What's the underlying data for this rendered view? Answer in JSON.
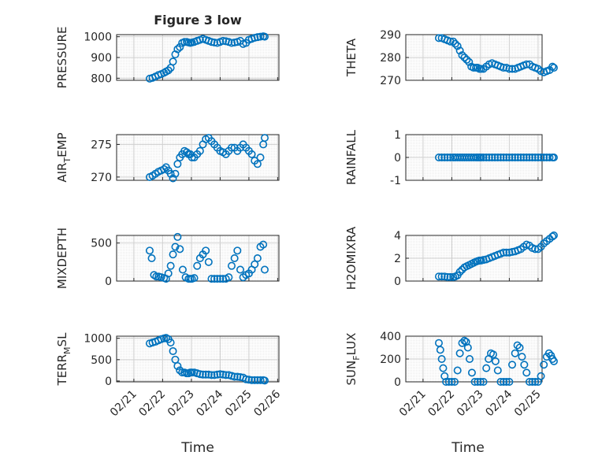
{
  "figure": {
    "title": "Figure 3 low",
    "xlabel": "Time",
    "x_tick_labels": [
      "02/21",
      "02/22",
      "02/23",
      "02/24",
      "02/25",
      "02/26"
    ]
  },
  "chart_data": [
    {
      "type": "scatter",
      "id": "pressure",
      "ylabel": "PRESSURE",
      "ylim": [
        790,
        1010
      ],
      "yticks": [
        800,
        900,
        1000
      ],
      "grid": true,
      "x_range_days": [
        0,
        5
      ],
      "x_tick_labels": [
        "02/21",
        "02/22",
        "02/23",
        "02/24",
        "02/25",
        "02/26"
      ],
      "series": [
        {
          "x": [
            0.55,
            0.65,
            0.75,
            0.85,
            0.95,
            1.05,
            1.12,
            1.2,
            1.28,
            1.36,
            1.44,
            1.52,
            1.6,
            1.68,
            1.76,
            1.84,
            1.9,
            1.96,
            2.02,
            2.1,
            2.2,
            2.3,
            2.4,
            2.5,
            2.6,
            2.7,
            2.8,
            2.9,
            3.0,
            3.1,
            3.2,
            3.3,
            3.4,
            3.5,
            3.6,
            3.7,
            3.8,
            3.9,
            4.0,
            4.1,
            4.2,
            4.3,
            4.4,
            4.5,
            4.55
          ],
          "values": [
            798,
            802,
            808,
            815,
            820,
            826,
            832,
            838,
            850,
            880,
            915,
            940,
            950,
            970,
            975,
            975,
            972,
            970,
            972,
            975,
            980,
            985,
            990,
            985,
            980,
            975,
            972,
            970,
            975,
            980,
            978,
            975,
            970,
            972,
            975,
            980,
            965,
            970,
            985,
            990,
            995,
            998,
            1000,
            1002,
            1000
          ]
        }
      ]
    },
    {
      "type": "scatter",
      "id": "theta",
      "ylabel": "THETA",
      "ylim": [
        270,
        290
      ],
      "yticks": [
        270,
        280,
        290
      ],
      "grid": true,
      "x_range_days": [
        0,
        5
      ],
      "x_tick_labels": [
        "02/21",
        "02/22",
        "02/23",
        "02/24",
        "02/25",
        "02/26"
      ],
      "series": [
        {
          "x": [
            0.55,
            0.65,
            0.75,
            0.85,
            0.95,
            1.05,
            1.12,
            1.2,
            1.28,
            1.36,
            1.44,
            1.52,
            1.6,
            1.68,
            1.76,
            1.84,
            1.9,
            1.96,
            2.02,
            2.1,
            2.2,
            2.3,
            2.4,
            2.5,
            2.6,
            2.7,
            2.8,
            2.9,
            3.0,
            3.1,
            3.2,
            3.3,
            3.4,
            3.5,
            3.6,
            3.7,
            3.8,
            3.9,
            4.0,
            4.1,
            4.2,
            4.3,
            4.4,
            4.5,
            4.55
          ],
          "values": [
            288.5,
            288.5,
            288,
            287.5,
            287,
            287,
            286,
            285,
            283,
            281,
            280,
            279,
            278,
            276,
            275.5,
            275.5,
            275.5,
            275,
            275,
            275,
            276,
            277,
            277.5,
            277,
            276.5,
            276,
            275.5,
            275.5,
            275,
            275,
            275,
            275.5,
            276,
            276.5,
            277,
            277,
            276,
            275.5,
            275,
            274,
            273.5,
            274,
            274.5,
            276,
            275.5
          ]
        }
      ]
    },
    {
      "type": "scatter",
      "id": "air-temp",
      "ylabel_main": "AIR",
      "ylabel_sub": "T",
      "ylabel_rest": "EMP",
      "ylim": [
        269.5,
        276.5
      ],
      "yticks": [
        270,
        275
      ],
      "grid": true,
      "x_range_days": [
        0,
        5
      ],
      "x_tick_labels": [
        "02/21",
        "02/22",
        "02/23",
        "02/24",
        "02/25",
        "02/26"
      ],
      "series": [
        {
          "x": [
            0.55,
            0.65,
            0.75,
            0.85,
            0.95,
            1.05,
            1.12,
            1.2,
            1.28,
            1.36,
            1.44,
            1.52,
            1.6,
            1.68,
            1.76,
            1.84,
            1.9,
            1.96,
            2.02,
            2.1,
            2.2,
            2.3,
            2.4,
            2.5,
            2.6,
            2.7,
            2.8,
            2.9,
            3.0,
            3.1,
            3.2,
            3.3,
            3.4,
            3.5,
            3.6,
            3.7,
            3.8,
            3.9,
            4.0,
            4.1,
            4.2,
            4.3,
            4.4,
            4.5,
            4.55
          ],
          "values": [
            270,
            270.2,
            270.5,
            270.8,
            271,
            271.2,
            271.5,
            271,
            270.5,
            269.8,
            270.5,
            272,
            273,
            273.5,
            274,
            273.8,
            273.5,
            273.5,
            273,
            273,
            273.5,
            274,
            275,
            275.8,
            276,
            275.5,
            275,
            274.5,
            274,
            273.8,
            273.5,
            274,
            274.5,
            274.5,
            274,
            274.5,
            275,
            274.5,
            274,
            273.5,
            272.5,
            272,
            273,
            275,
            276
          ]
        }
      ]
    },
    {
      "type": "scatter",
      "id": "rainfall",
      "ylabel": "RAINFALL",
      "ylim": [
        -1,
        1
      ],
      "yticks": [
        -1,
        0,
        1
      ],
      "grid": true,
      "x_range_days": [
        0,
        5
      ],
      "x_tick_labels": [
        "02/21",
        "02/22",
        "02/23",
        "02/24",
        "02/25",
        "02/26"
      ],
      "series": [
        {
          "x": [
            0.55,
            0.65,
            0.75,
            0.85,
            0.95,
            1.05,
            1.12,
            1.2,
            1.28,
            1.36,
            1.44,
            1.52,
            1.6,
            1.68,
            1.76,
            1.84,
            1.9,
            1.96,
            2.02,
            2.1,
            2.2,
            2.3,
            2.4,
            2.5,
            2.6,
            2.7,
            2.8,
            2.9,
            3.0,
            3.1,
            3.2,
            3.3,
            3.4,
            3.5,
            3.6,
            3.7,
            3.8,
            3.9,
            4.0,
            4.1,
            4.2,
            4.3,
            4.4,
            4.5,
            4.55
          ],
          "values": [
            0,
            0,
            0,
            0,
            0,
            0,
            0,
            0,
            0,
            0,
            0,
            0,
            0,
            0,
            0,
            0,
            0,
            0,
            0,
            0,
            0,
            0,
            0,
            0,
            0,
            0,
            0,
            0,
            0,
            0,
            0,
            0,
            0,
            0,
            0,
            0,
            0,
            0,
            0,
            0,
            0,
            0,
            0,
            0,
            0
          ]
        }
      ]
    },
    {
      "type": "scatter",
      "id": "mixdepth",
      "ylabel": "MIXDEPTH",
      "ylim": [
        0,
        600
      ],
      "yticks": [
        0,
        500
      ],
      "grid": true,
      "x_range_days": [
        0,
        5
      ],
      "x_tick_labels": [
        "02/21",
        "02/22",
        "02/23",
        "02/24",
        "02/25",
        "02/26"
      ],
      "series": [
        {
          "x": [
            0.55,
            0.62,
            0.7,
            0.78,
            0.86,
            0.95,
            1.05,
            1.12,
            1.2,
            1.28,
            1.36,
            1.44,
            1.52,
            1.6,
            1.7,
            1.8,
            1.9,
            1.96,
            2.02,
            2.1,
            2.2,
            2.3,
            2.4,
            2.5,
            2.6,
            2.7,
            2.8,
            2.9,
            3.0,
            3.1,
            3.2,
            3.3,
            3.4,
            3.5,
            3.6,
            3.7,
            3.8,
            3.9,
            4.0,
            4.1,
            4.2,
            4.3,
            4.4,
            4.5,
            4.55
          ],
          "values": [
            400,
            300,
            80,
            60,
            60,
            50,
            40,
            30,
            100,
            200,
            350,
            450,
            580,
            420,
            150,
            50,
            30,
            30,
            30,
            40,
            200,
            300,
            350,
            400,
            250,
            30,
            30,
            30,
            30,
            30,
            30,
            50,
            200,
            300,
            400,
            150,
            50,
            80,
            100,
            150,
            220,
            300,
            450,
            480,
            150
          ]
        }
      ]
    },
    {
      "type": "scatter",
      "id": "h2omixra",
      "ylabel": "H2OMIXRA",
      "ylim": [
        0,
        4
      ],
      "yticks": [
        0,
        2,
        4
      ],
      "grid": true,
      "x_range_days": [
        0,
        5
      ],
      "x_tick_labels": [
        "02/21",
        "02/22",
        "02/23",
        "02/24",
        "02/25",
        "02/26"
      ],
      "series": [
        {
          "x": [
            0.55,
            0.65,
            0.75,
            0.85,
            0.95,
            1.05,
            1.12,
            1.2,
            1.28,
            1.36,
            1.44,
            1.52,
            1.6,
            1.68,
            1.76,
            1.84,
            1.9,
            1.96,
            2.02,
            2.1,
            2.2,
            2.3,
            2.4,
            2.5,
            2.6,
            2.7,
            2.8,
            2.9,
            3.0,
            3.1,
            3.2,
            3.3,
            3.4,
            3.5,
            3.6,
            3.7,
            3.8,
            3.9,
            4.0,
            4.1,
            4.2,
            4.3,
            4.4,
            4.5,
            4.55
          ],
          "values": [
            0.4,
            0.4,
            0.4,
            0.35,
            0.35,
            0.35,
            0.4,
            0.5,
            0.8,
            1.0,
            1.2,
            1.3,
            1.4,
            1.5,
            1.6,
            1.7,
            1.75,
            1.8,
            1.8,
            1.85,
            1.9,
            2.0,
            2.1,
            2.2,
            2.3,
            2.4,
            2.5,
            2.5,
            2.5,
            2.55,
            2.6,
            2.7,
            2.8,
            3.0,
            3.2,
            3.1,
            2.9,
            2.8,
            2.8,
            3.0,
            3.3,
            3.5,
            3.7,
            3.9,
            4.0
          ]
        }
      ]
    },
    {
      "type": "scatter",
      "id": "terr-msl",
      "ylabel_main": "TERR",
      "ylabel_sub": "M",
      "ylabel_rest": "SL",
      "ylim": [
        -20,
        1050
      ],
      "yticks": [
        0,
        500,
        1000
      ],
      "grid": true,
      "x_range_days": [
        0,
        5
      ],
      "x_tick_labels": [
        "02/21",
        "02/22",
        "02/23",
        "02/24",
        "02/25",
        "02/26"
      ],
      "series": [
        {
          "x": [
            0.55,
            0.65,
            0.75,
            0.85,
            0.95,
            1.05,
            1.12,
            1.2,
            1.28,
            1.36,
            1.44,
            1.52,
            1.6,
            1.68,
            1.76,
            1.84,
            1.9,
            1.96,
            2.02,
            2.1,
            2.2,
            2.3,
            2.4,
            2.5,
            2.6,
            2.7,
            2.8,
            2.9,
            3.0,
            3.1,
            3.2,
            3.3,
            3.4,
            3.5,
            3.6,
            3.7,
            3.8,
            3.9,
            4.0,
            4.1,
            4.2,
            4.3,
            4.4,
            4.5,
            4.55
          ],
          "values": [
            880,
            900,
            920,
            950,
            980,
            1000,
            1010,
            980,
            900,
            700,
            500,
            350,
            250,
            200,
            200,
            180,
            180,
            200,
            200,
            200,
            180,
            160,
            150,
            150,
            150,
            140,
            140,
            150,
            160,
            150,
            140,
            140,
            120,
            100,
            100,
            90,
            80,
            40,
            30,
            20,
            20,
            20,
            20,
            20,
            10
          ]
        }
      ]
    },
    {
      "type": "scatter",
      "id": "sun-flux",
      "ylabel_main": "SUN",
      "ylabel_sub": "F",
      "ylabel_rest": "LUX",
      "ylim": [
        0,
        400
      ],
      "yticks": [
        0,
        200,
        400
      ],
      "grid": true,
      "x_range_days": [
        0,
        5
      ],
      "x_tick_labels": [
        "02/21",
        "02/22",
        "02/23",
        "02/24",
        "02/25",
        "02/26"
      ],
      "series": [
        {
          "x": [
            0.55,
            0.6,
            0.65,
            0.7,
            0.75,
            0.8,
            0.9,
            1.0,
            1.1,
            1.2,
            1.28,
            1.36,
            1.44,
            1.5,
            1.56,
            1.62,
            1.7,
            1.8,
            1.9,
            2.0,
            2.1,
            2.2,
            2.28,
            2.36,
            2.44,
            2.52,
            2.6,
            2.7,
            2.8,
            2.9,
            3.0,
            3.1,
            3.2,
            3.28,
            3.36,
            3.44,
            3.52,
            3.6,
            3.7,
            3.8,
            3.9,
            4.0,
            4.1,
            4.2,
            4.3,
            4.38,
            4.45,
            4.5,
            4.55
          ],
          "values": [
            340,
            280,
            200,
            120,
            50,
            0,
            0,
            0,
            0,
            100,
            250,
            340,
            360,
            350,
            300,
            200,
            80,
            0,
            0,
            0,
            0,
            120,
            200,
            250,
            240,
            180,
            100,
            0,
            0,
            0,
            0,
            150,
            250,
            320,
            300,
            220,
            150,
            80,
            0,
            0,
            0,
            0,
            50,
            150,
            220,
            250,
            230,
            200,
            180
          ]
        }
      ]
    }
  ]
}
